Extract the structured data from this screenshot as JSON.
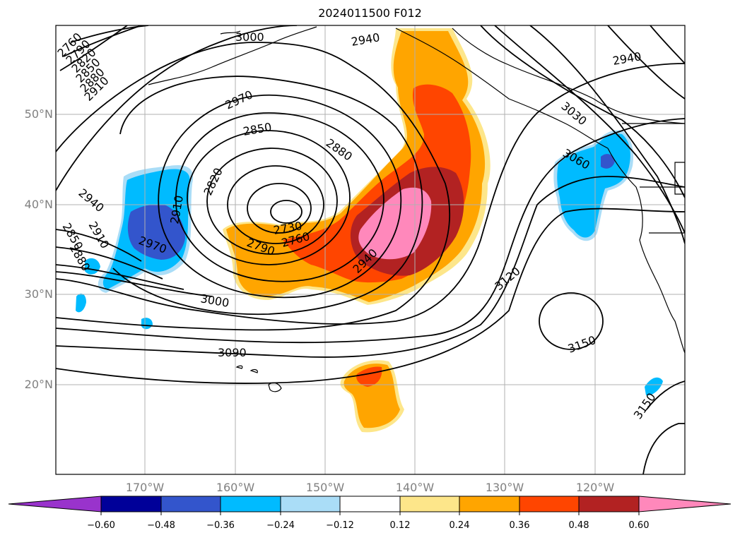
{
  "title": "2024011500 F012",
  "map": {
    "lat_labels": [
      "50°N",
      "40°N",
      "30°N",
      "20°N"
    ],
    "lon_labels": [
      "170°W",
      "160°W",
      "150°W",
      "140°W",
      "130°W",
      "120°W"
    ],
    "contour_labels": [
      "2760",
      "2790",
      "2820",
      "2850",
      "2880",
      "2910",
      "2850",
      "2880",
      "2910",
      "3000",
      "2940",
      "2970",
      "2850",
      "2820",
      "2880",
      "2910",
      "2730",
      "2760",
      "2790",
      "2940",
      "2940",
      "2970",
      "3000",
      "3090",
      "3120",
      "3150",
      "3150",
      "3030",
      "3060",
      "2940"
    ],
    "contour_interval_gpm": 30,
    "shading_field": "anomaly (positive warm colors, negative cool colors)"
  },
  "colorbar": {
    "ticks": [
      "−0.60",
      "−0.48",
      "−0.36",
      "−0.24",
      "−0.12",
      "0.12",
      "0.24",
      "0.36",
      "0.48",
      "0.60"
    ],
    "colors": [
      "#9933cc",
      "#000099",
      "#3355cc",
      "#00bbff",
      "#aaddf7",
      "#ffffff",
      "#fde68a",
      "#ffa500",
      "#ff4500",
      "#b22222",
      "#ff88bb",
      "#ff88bb"
    ]
  }
}
